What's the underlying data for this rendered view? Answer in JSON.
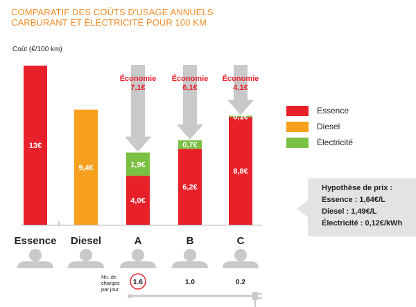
{
  "header": {
    "title_line1": "COMPARATIF DES COÛTS D'USAGE ANNUELS",
    "title_line2": "CARBURANT ET ÉLECTRICITÉ POUR 100 KM"
  },
  "chart_data": {
    "type": "bar",
    "ylabel": "Coût (€/100 km)",
    "ylim": [
      0,
      14
    ],
    "categories": [
      "Essence",
      "Diesel",
      "A",
      "B",
      "C"
    ],
    "stacked": true,
    "series": [
      {
        "name": "Essence",
        "color": "#e8202a",
        "values": [
          13,
          0,
          4.0,
          6.2,
          8.8
        ],
        "labels": [
          "13€",
          "",
          "4,0€",
          "6,2€",
          "8,8€"
        ]
      },
      {
        "name": "Diesel",
        "color": "#f7a01d",
        "values": [
          0,
          9.4,
          0,
          0,
          0
        ],
        "labels": [
          "",
          "9,4€",
          "",
          "",
          ""
        ]
      },
      {
        "name": "Électricité",
        "color": "#7ac143",
        "values": [
          0,
          0,
          1.9,
          0.7,
          0.1
        ],
        "labels": [
          "",
          "",
          "1,9€",
          "0,7€",
          "0,1€"
        ]
      }
    ],
    "savings": [
      {
        "category": "A",
        "label_line1": "Économie",
        "label_line2": "7,1€"
      },
      {
        "category": "B",
        "label_line1": "Économie",
        "label_line2": "6,1€"
      },
      {
        "category": "C",
        "label_line1": "Économie",
        "label_line2": "4,1€"
      }
    ],
    "legend": [
      "Essence",
      "Diesel",
      "Électricité"
    ],
    "legend_position": "right",
    "charges_per_day": {
      "label": "No. de charges par jour",
      "label_lines": [
        "No. de",
        "charges",
        "par jour"
      ],
      "values": [
        "1.6",
        "1.0",
        "0.2"
      ],
      "highlighted": "1.6"
    }
  },
  "hypothesis": {
    "title": "Hypothèse de prix :",
    "lines": [
      "Essence : 1,64€/L",
      "Diesel : 1,49€/L",
      "Électricité : 0,12€/kWh"
    ]
  },
  "colors": {
    "title": "#f28c28",
    "savings_text": "#e8202a",
    "arrow": "#c9c9c9",
    "person": "#c9c9c9"
  }
}
